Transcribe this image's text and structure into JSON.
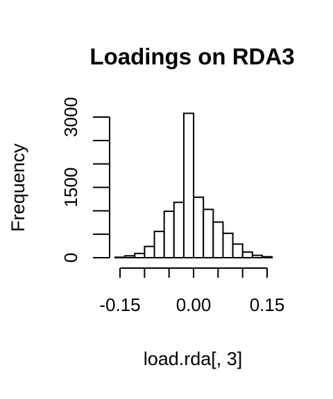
{
  "chart_data": {
    "type": "bar",
    "title": "Loadings on RDA3",
    "xlabel": "load.rda[, 3]",
    "ylabel": "Frequency",
    "bin_width": 0.02,
    "bins_start": -0.15,
    "xlim": [
      -0.15,
      0.15
    ],
    "ylim": [
      0,
      3000
    ],
    "x_ticks": [
      -0.15,
      -0.1,
      -0.05,
      0.0,
      0.05,
      0.1,
      0.15
    ],
    "x_tick_labels": [
      "-0.15",
      "",
      "",
      "0.00",
      "",
      "",
      "0.15"
    ],
    "y_ticks": [
      0,
      500,
      1000,
      1500,
      2000,
      2500,
      3000
    ],
    "y_tick_labels": [
      "0",
      "",
      "",
      "1500",
      "",
      "",
      "3000"
    ],
    "bins": [
      {
        "x0": -0.15,
        "x1": -0.13,
        "count": 10
      },
      {
        "x0": -0.13,
        "x1": -0.11,
        "count": 40
      },
      {
        "x0": -0.11,
        "x1": -0.09,
        "count": 90
      },
      {
        "x0": -0.09,
        "x1": -0.07,
        "count": 240
      },
      {
        "x0": -0.07,
        "x1": -0.05,
        "count": 560
      },
      {
        "x0": -0.05,
        "x1": -0.03,
        "count": 990
      },
      {
        "x0": -0.03,
        "x1": -0.01,
        "count": 1180
      },
      {
        "x0": -0.01,
        "x1": 0.01,
        "count": 3080
      },
      {
        "x0": 0.01,
        "x1": 0.03,
        "count": 1290
      },
      {
        "x0": 0.03,
        "x1": 0.05,
        "count": 1030
      },
      {
        "x0": 0.05,
        "x1": 0.07,
        "count": 760
      },
      {
        "x0": 0.07,
        "x1": 0.09,
        "count": 520
      },
      {
        "x0": 0.09,
        "x1": 0.11,
        "count": 290
      },
      {
        "x0": 0.11,
        "x1": 0.13,
        "count": 120
      },
      {
        "x0": 0.13,
        "x1": 0.15,
        "count": 50
      },
      {
        "x0": 0.15,
        "x1": 0.17,
        "count": 20
      }
    ],
    "grid": false,
    "legend": "none"
  }
}
